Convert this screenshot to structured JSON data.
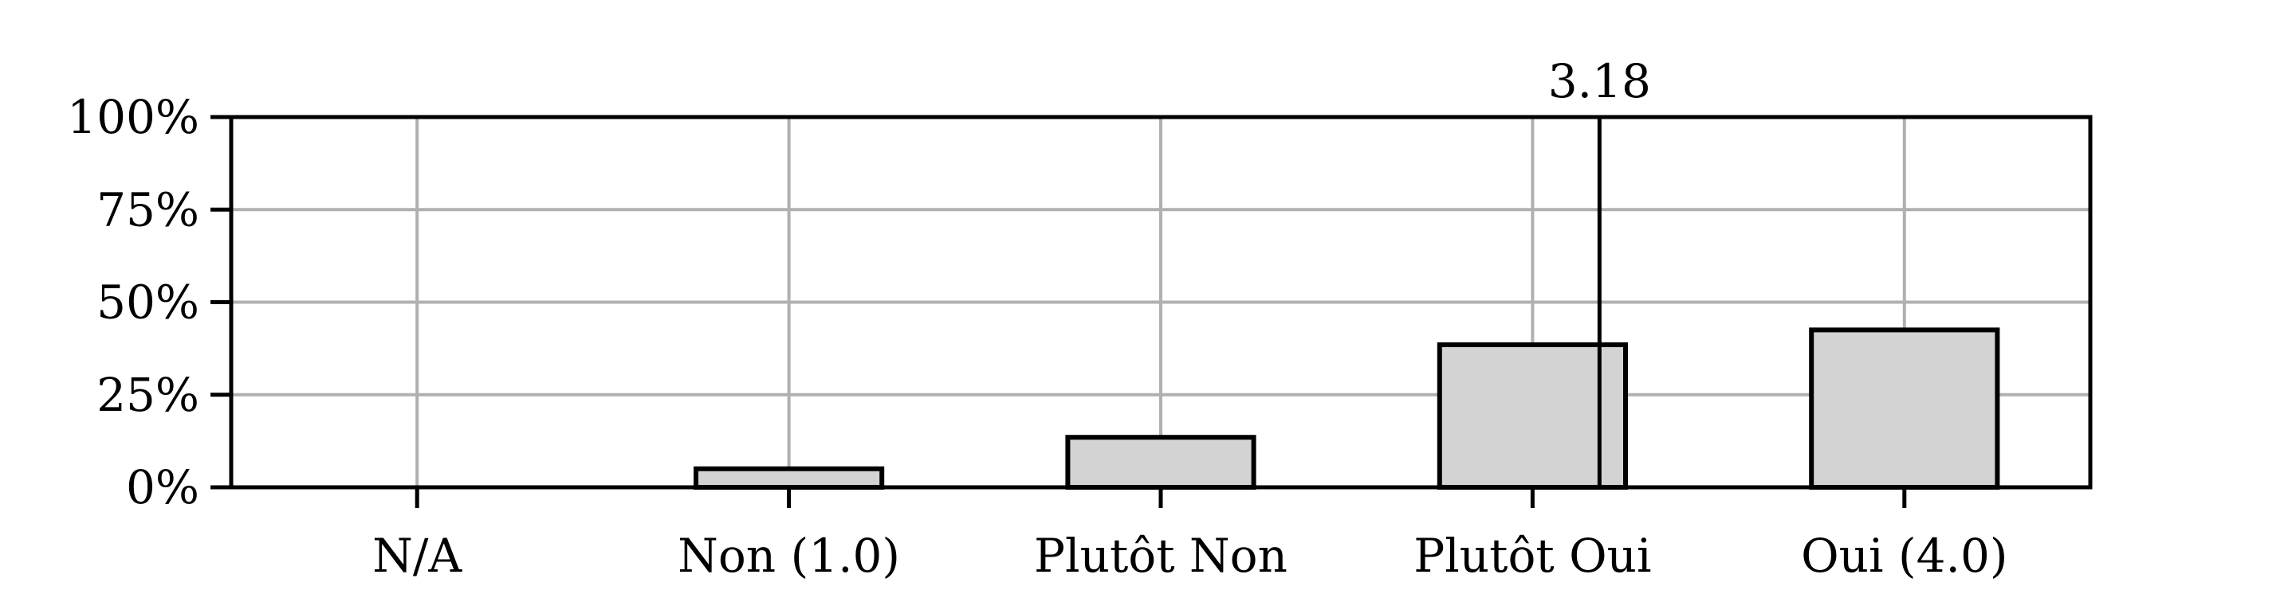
{
  "chart_data": {
    "type": "bar",
    "categories": [
      "N/A",
      "Non (1.0)",
      "Plutôt Non",
      "Plutôt Oui",
      "Oui (4.0)"
    ],
    "values": [
      0,
      5,
      13.5,
      38.5,
      42.5
    ],
    "value_unit": "%",
    "ylim": [
      0,
      100
    ],
    "yticks": [
      0,
      25,
      50,
      75,
      100
    ],
    "ytick_labels": [
      "0%",
      "25%",
      "50%",
      "75%",
      "100%"
    ],
    "grid": true,
    "bar_color": "#d3d3d3",
    "mean_marker": {
      "value": 3.18,
      "label": "3.18"
    }
  }
}
